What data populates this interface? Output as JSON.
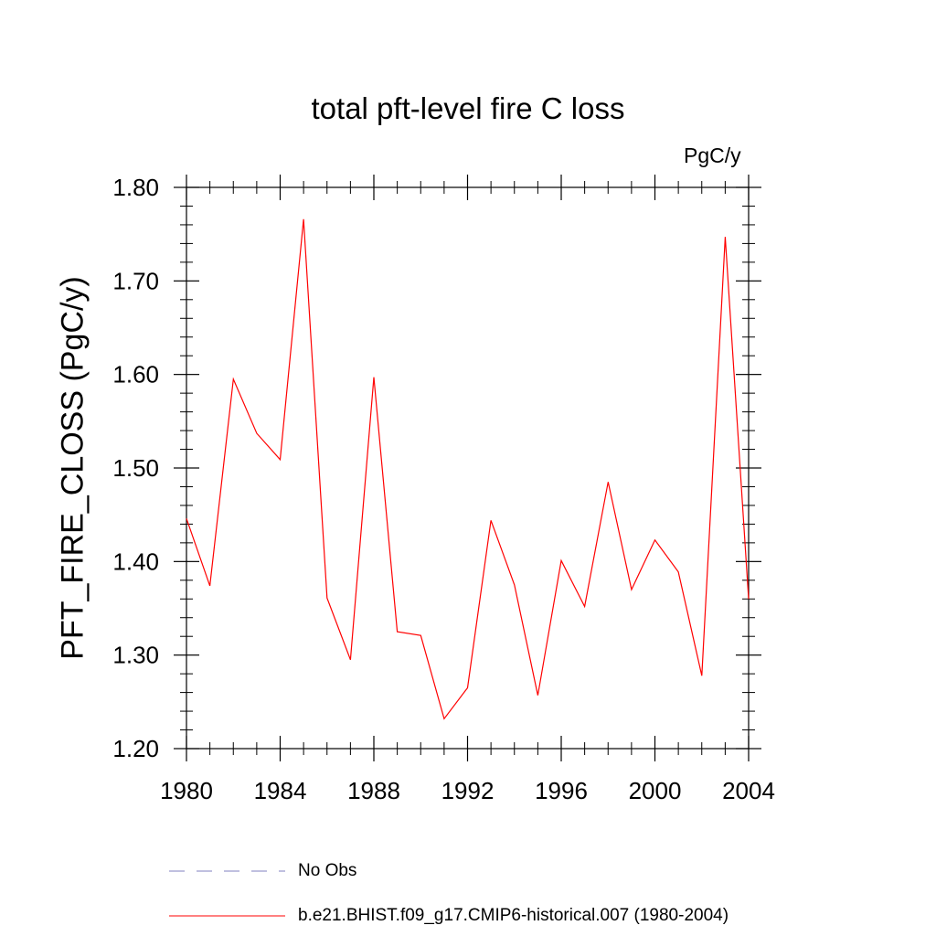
{
  "chart_data": {
    "type": "line",
    "title": "total pft-level fire C loss",
    "units_label": "PgC/y",
    "ylabel": "PFT_FIRE_CLOSS  (PgC/y)",
    "xlabel": "",
    "xlim": [
      1980,
      2004
    ],
    "ylim": [
      1.2,
      1.8
    ],
    "x_ticks": [
      1980,
      1984,
      1988,
      1992,
      1996,
      2000,
      2004
    ],
    "y_ticks": [
      "1.20",
      "1.30",
      "1.40",
      "1.50",
      "1.60",
      "1.70",
      "1.80"
    ],
    "grid": false,
    "legend_position": "bottom",
    "series": [
      {
        "name": "b.e21.BHIST.f09_g17.CMIP6-historical.007 (1980-2004)",
        "color": "#ff0000",
        "style": "solid",
        "x": [
          1980,
          1981,
          1982,
          1983,
          1984,
          1985,
          1986,
          1987,
          1988,
          1989,
          1990,
          1991,
          1992,
          1993,
          1994,
          1995,
          1996,
          1997,
          1998,
          1999,
          2000,
          2001,
          2002,
          2003,
          2004
        ],
        "values": [
          1.446,
          1.374,
          1.595,
          1.537,
          1.509,
          1.766,
          1.361,
          1.295,
          1.597,
          1.325,
          1.321,
          1.232,
          1.265,
          1.444,
          1.375,
          1.257,
          1.401,
          1.352,
          1.485,
          1.37,
          1.423,
          1.389,
          1.278,
          1.747,
          1.36
        ]
      }
    ],
    "legend": [
      {
        "label": "No Obs",
        "color": "#8080c0",
        "style": "dashed"
      },
      {
        "label": "b.e21.BHIST.f09_g17.CMIP6-historical.007 (1980-2004)",
        "color": "#ff0000",
        "style": "solid"
      }
    ]
  }
}
